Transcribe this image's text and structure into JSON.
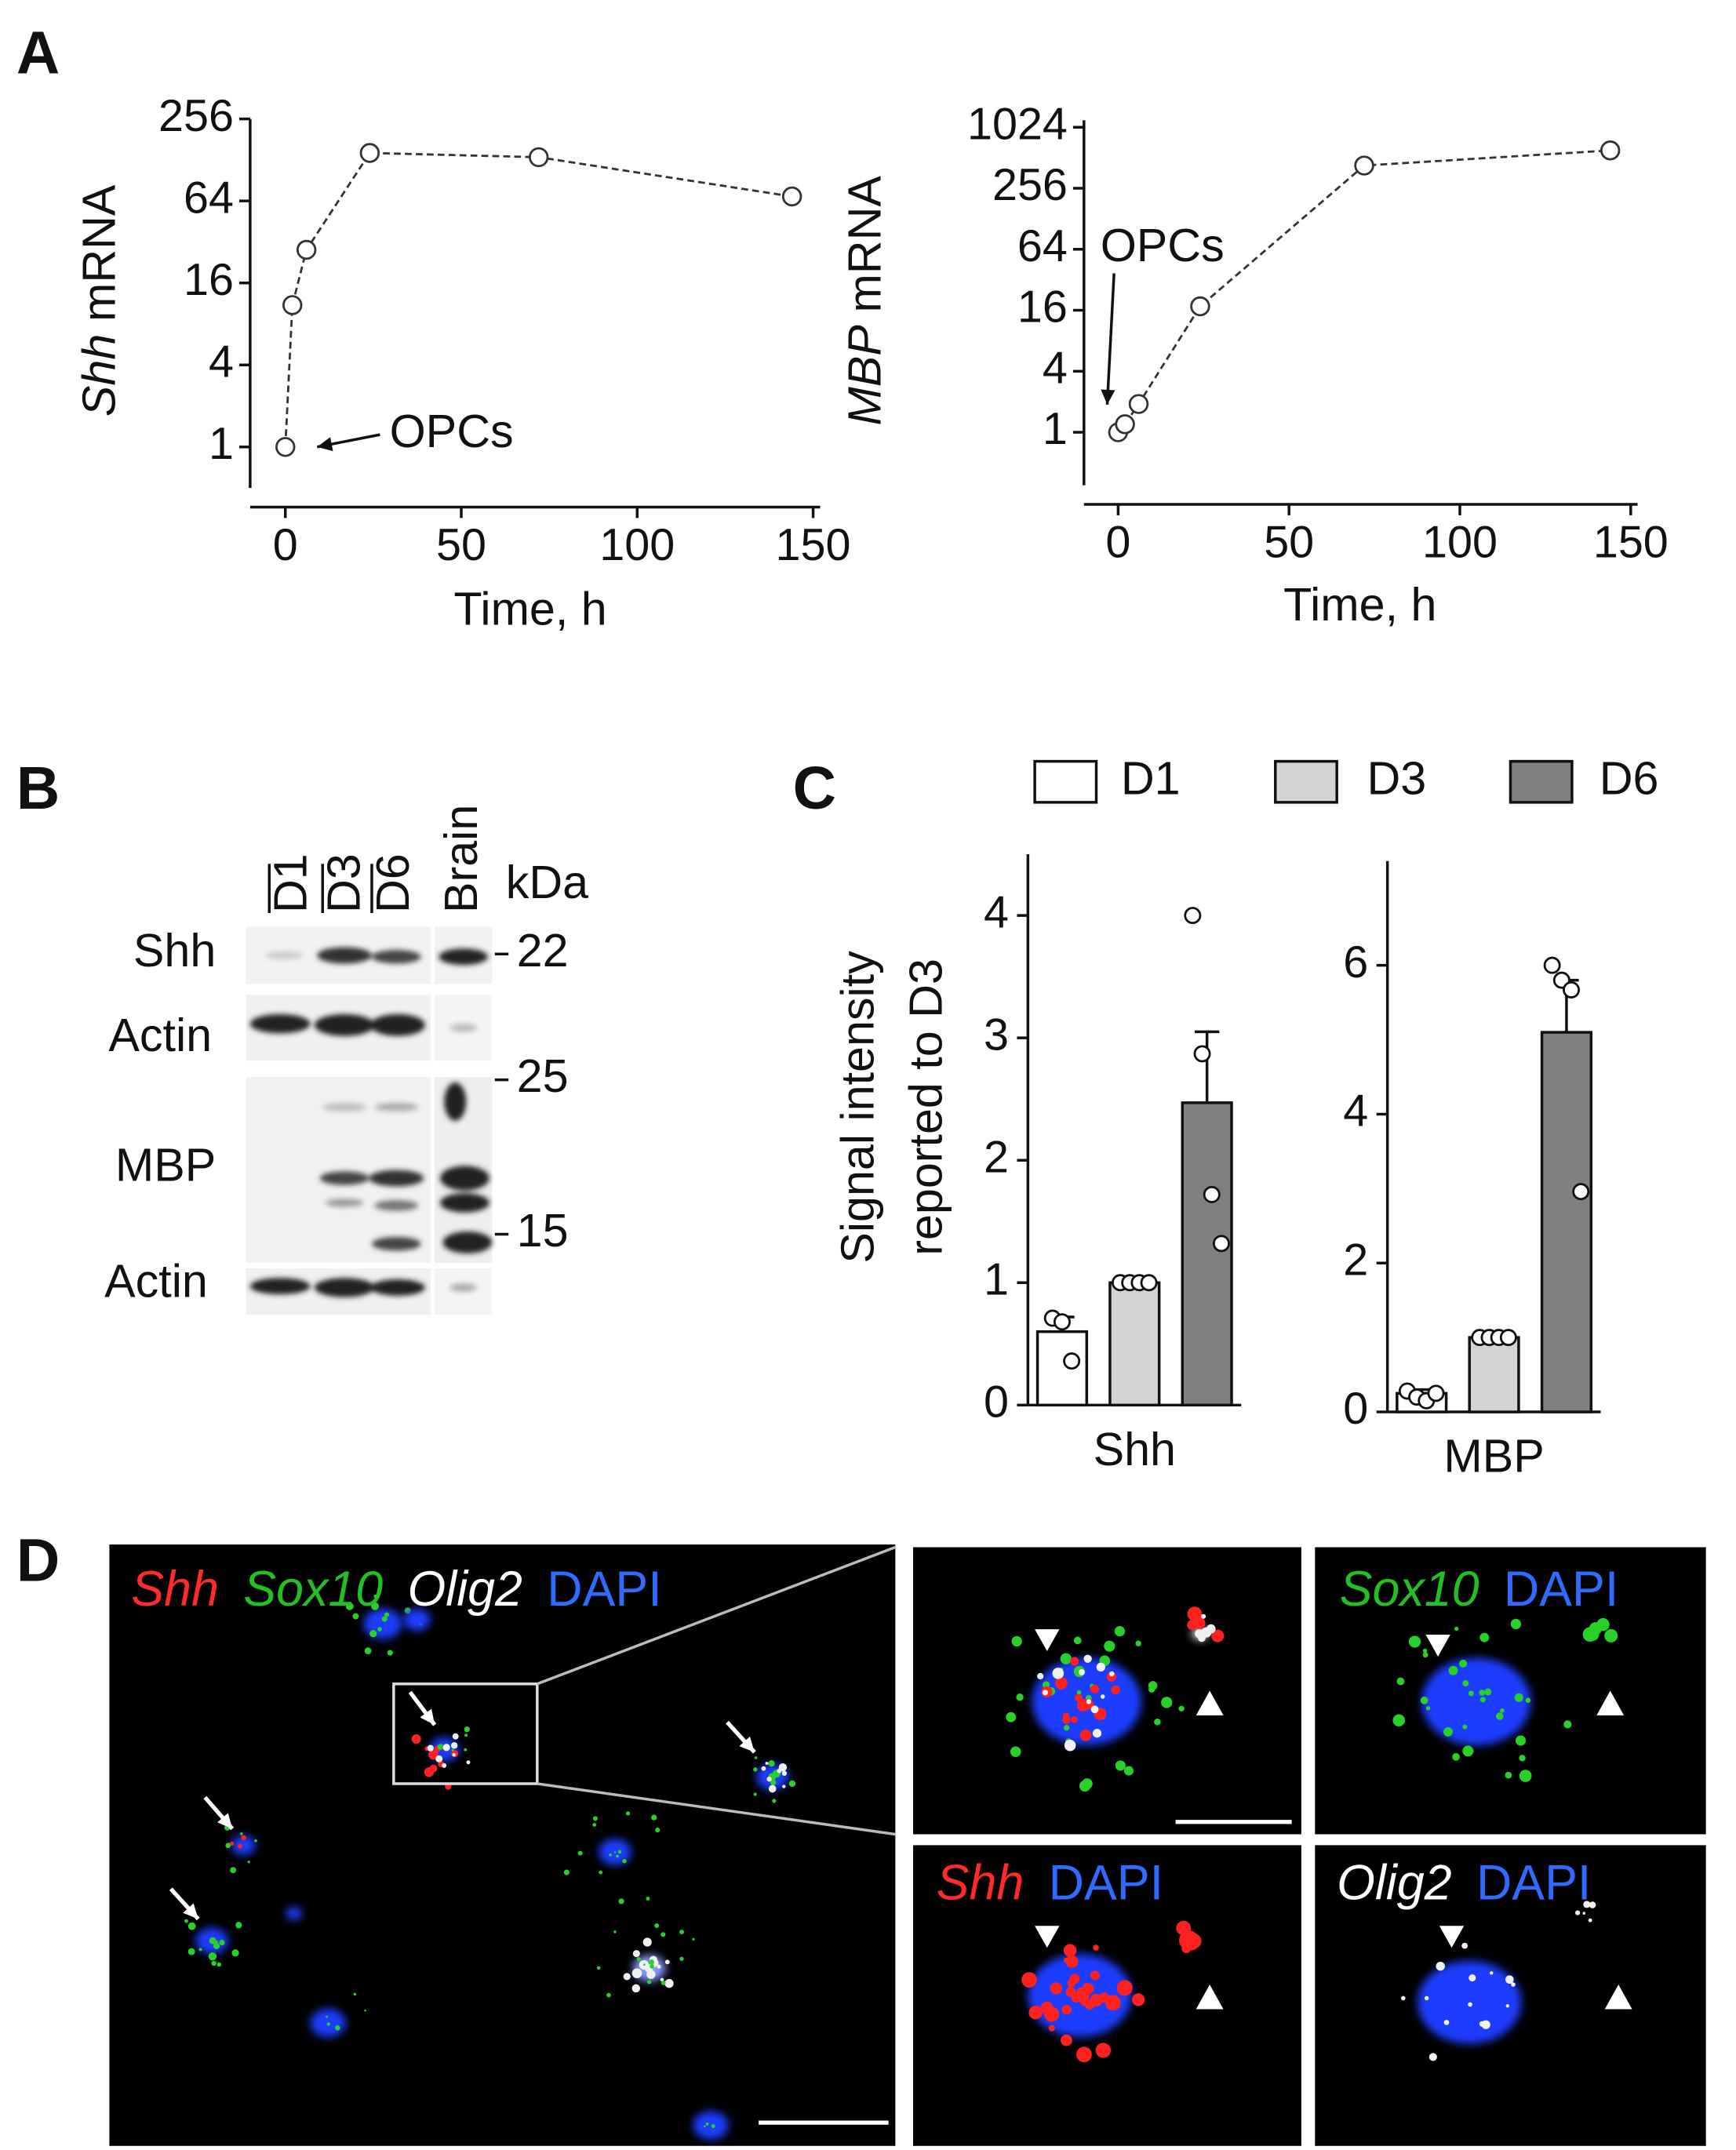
{
  "panel_labels": [
    "A",
    "B",
    "C",
    "D"
  ],
  "chart_data": [
    {
      "type": "line",
      "ylabel": [
        "Shh",
        "mRNA"
      ],
      "xlabel": "Time, h",
      "x": [
        0,
        2,
        6,
        24,
        72,
        144
      ],
      "values": [
        1,
        11,
        28,
        144,
        134,
        69
      ],
      "xlim": [
        -10,
        152
      ],
      "ylim": [
        0.5,
        256
      ],
      "log_y": true,
      "xticks": [
        0,
        50,
        100,
        150
      ],
      "yticks": [
        1,
        4,
        16,
        64,
        256
      ],
      "annotation": "OPCs",
      "color": "#333333"
    },
    {
      "type": "line",
      "ylabel": [
        "MBP",
        "mRNA"
      ],
      "xlabel": "Time, h",
      "x": [
        0,
        2,
        6,
        24,
        72,
        144
      ],
      "values": [
        1,
        1.2,
        1.9,
        17.5,
        429,
        605
      ],
      "xlim": [
        -10,
        152
      ],
      "ylim": [
        0.3,
        1200
      ],
      "log_y": true,
      "xticks": [
        0,
        50,
        100,
        150
      ],
      "yticks": [
        1,
        4,
        16,
        64,
        256,
        1024
      ],
      "annotation": "OPCs",
      "color": "#333333"
    },
    {
      "type": "bar",
      "ylabel": [
        "Signal intensity",
        "reported to D3"
      ],
      "categories": [
        "Shh"
      ],
      "ylim": [
        0,
        4.5
      ],
      "yticks": [
        0,
        1,
        2,
        3,
        4
      ],
      "series": [
        {
          "name": "D1",
          "color": "#ffffff",
          "values": [
            0.6
          ],
          "errors": [
            0.12
          ],
          "points": [
            [
              0.71,
              0.68,
              0.36
            ]
          ]
        },
        {
          "name": "D3",
          "color": "#d4d4d4",
          "values": [
            1.0
          ],
          "errors": [
            0
          ],
          "points": [
            [
              1,
              1,
              1,
              1
            ]
          ]
        },
        {
          "name": "D6",
          "color": "#808080",
          "values": [
            2.47
          ],
          "errors": [
            0.58
          ],
          "points": [
            [
              4.0,
              2.87,
              1.72,
              1.32
            ]
          ]
        }
      ]
    },
    {
      "type": "bar",
      "categories": [
        "MBP"
      ],
      "ylim": [
        0,
        7.4
      ],
      "yticks": [
        0,
        2,
        4,
        6
      ],
      "series": [
        {
          "color": "#ffffff",
          "values": [
            0.25
          ],
          "errors": [
            0.05
          ],
          "points": [
            [
              0.28,
              0.2,
              0.15,
              0.25
            ]
          ]
        },
        {
          "color": "#d4d4d4",
          "values": [
            1.0
          ],
          "errors": [
            0
          ],
          "points": [
            [
              1,
              1,
              1,
              1
            ]
          ]
        },
        {
          "color": "#808080",
          "values": [
            5.1
          ],
          "errors": [
            0.7
          ],
          "points": [
            [
              6.0,
              5.8,
              5.67,
              2.96
            ]
          ]
        }
      ]
    }
  ],
  "blot": {
    "lanes": [
      "D1",
      "D3",
      "D6",
      "Brain"
    ],
    "unit": "kDa",
    "rows": [
      "Shh",
      "Actin",
      "MBP",
      "Actin"
    ],
    "markers": [
      "22",
      "25",
      "15"
    ]
  },
  "micrographs": {
    "main": [
      "Shh",
      "Sox10",
      "Olig2",
      "DAPI"
    ],
    "sox10_panel": [
      "Sox10",
      "DAPI"
    ],
    "shh_panel": [
      "Shh",
      "DAPI"
    ],
    "olig2_panel": [
      "Olig2",
      "DAPI"
    ]
  }
}
